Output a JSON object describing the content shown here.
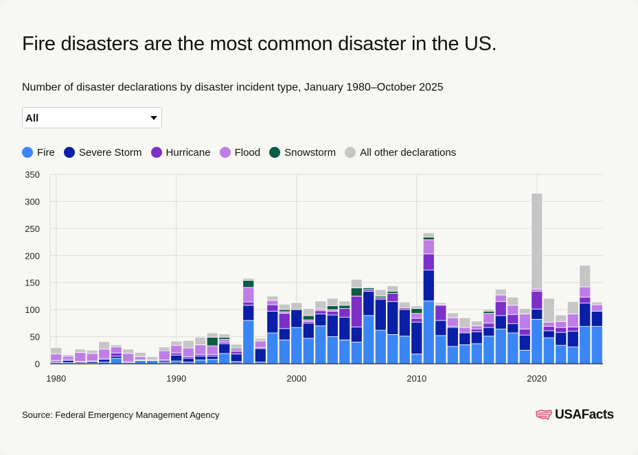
{
  "header": {
    "title": "Fire disasters are the most common disaster in the US.",
    "subtitle": "Number of disaster declarations by disaster incident type, January 1980–October 2025"
  },
  "filter": {
    "selected": "All"
  },
  "legend": [
    {
      "label": "Fire",
      "color": "#3a86f5"
    },
    {
      "label": "Severe Storm",
      "color": "#0a1fa8"
    },
    {
      "label": "Hurricane",
      "color": "#7c2fc9"
    },
    {
      "label": "Flood",
      "color": "#bf7de6"
    },
    {
      "label": "Snowstorm",
      "color": "#0b5c44"
    },
    {
      "label": "All other declarations",
      "color": "#c6c6c6"
    }
  ],
  "source": "Source: Federal Emergency Management Agency",
  "logo": {
    "text": "USAFacts"
  },
  "chart_data": {
    "type": "bar",
    "stacked": true,
    "title": "Number of disaster declarations by disaster incident type, January 1980–October 2025",
    "xlabel": "",
    "ylabel": "",
    "ylim": [
      0,
      350
    ],
    "yticks": [
      0,
      50,
      100,
      150,
      200,
      250,
      300,
      350
    ],
    "xticks": [
      1980,
      1990,
      2000,
      2010,
      2020
    ],
    "grid": true,
    "categories": [
      1980,
      1981,
      1982,
      1983,
      1984,
      1985,
      1986,
      1987,
      1988,
      1989,
      1990,
      1991,
      1992,
      1993,
      1994,
      1995,
      1996,
      1997,
      1998,
      1999,
      2000,
      2001,
      2002,
      2003,
      2004,
      2005,
      2006,
      2007,
      2008,
      2009,
      2010,
      2011,
      2012,
      2013,
      2014,
      2015,
      2016,
      2017,
      2018,
      2019,
      2020,
      2021,
      2022,
      2023,
      2024,
      2025
    ],
    "series": [
      {
        "name": "Fire",
        "color": "#3a86f5",
        "values": [
          2,
          2,
          1,
          1,
          3,
          10,
          2,
          6,
          6,
          2,
          5,
          3,
          7,
          8,
          19,
          4,
          80,
          3,
          57,
          44,
          67,
          47,
          70,
          50,
          44,
          40,
          89,
          62,
          54,
          51,
          18,
          116,
          52,
          32,
          35,
          37,
          51,
          64,
          57,
          25,
          82,
          48,
          34,
          31,
          69,
          69
        ]
      },
      {
        "name": "Severe Storm",
        "color": "#0a1fa8",
        "values": [
          2,
          4,
          2,
          3,
          5,
          4,
          0,
          1,
          1,
          3,
          11,
          7,
          7,
          6,
          18,
          14,
          28,
          25,
          40,
          21,
          33,
          28,
          22,
          40,
          42,
          28,
          45,
          57,
          61,
          49,
          59,
          57,
          28,
          35,
          22,
          22,
          16,
          25,
          17,
          28,
          19,
          13,
          24,
          29,
          43,
          28
        ]
      },
      {
        "name": "Hurricane",
        "color": "#7c2fc9",
        "values": [
          2,
          2,
          1,
          1,
          2,
          6,
          2,
          0,
          0,
          2,
          4,
          3,
          3,
          3,
          3,
          5,
          6,
          2,
          12,
          28,
          0,
          3,
          6,
          7,
          16,
          57,
          3,
          3,
          15,
          3,
          7,
          30,
          28,
          2,
          0,
          5,
          8,
          26,
          17,
          11,
          33,
          8,
          9,
          8,
          11,
          0
        ]
      },
      {
        "name": "Flood",
        "color": "#bf7de6",
        "values": [
          12,
          6,
          17,
          14,
          17,
          11,
          15,
          6,
          0,
          17,
          14,
          16,
          18,
          16,
          5,
          5,
          27,
          12,
          8,
          3,
          0,
          3,
          3,
          3,
          0,
          0,
          0,
          0,
          0,
          0,
          9,
          26,
          2,
          16,
          10,
          6,
          18,
          12,
          17,
          28,
          4,
          8,
          11,
          24,
          19,
          12
        ]
      },
      {
        "name": "Snowstorm",
        "color": "#0b5c44",
        "values": [
          0,
          0,
          0,
          0,
          0,
          0,
          0,
          0,
          0,
          0,
          0,
          0,
          0,
          16,
          4,
          2,
          13,
          0,
          0,
          4,
          0,
          8,
          0,
          7,
          6,
          15,
          3,
          3,
          4,
          0,
          9,
          5,
          0,
          0,
          0,
          0,
          4,
          0,
          0,
          0,
          0,
          0,
          0,
          0,
          0,
          0
        ]
      },
      {
        "name": "All other declarations",
        "color": "#c6c6c6",
        "values": [
          12,
          3,
          6,
          6,
          14,
          4,
          8,
          8,
          6,
          7,
          8,
          14,
          14,
          8,
          6,
          6,
          4,
          5,
          8,
          10,
          13,
          13,
          15,
          14,
          8,
          16,
          2,
          12,
          10,
          11,
          5,
          8,
          3,
          9,
          18,
          9,
          4,
          11,
          15,
          10,
          177,
          44,
          12,
          23,
          40,
          5
        ]
      }
    ]
  }
}
